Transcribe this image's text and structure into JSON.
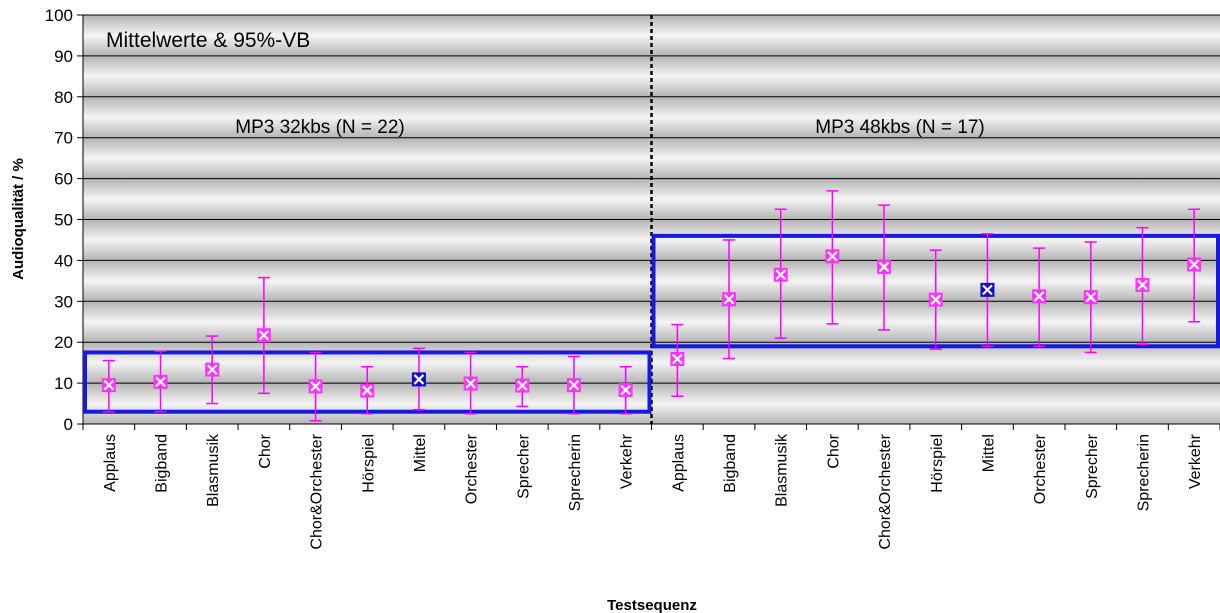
{
  "chart_data": {
    "type": "scatter",
    "title": "Mittelwerte & 95%-VB",
    "xlabel": "Testsequenz",
    "ylabel": "Audioqualität / %",
    "ylim": [
      0,
      100
    ],
    "yticks": [
      0,
      10,
      20,
      30,
      40,
      50,
      60,
      70,
      80,
      90,
      100
    ],
    "grid": true,
    "categories": [
      "Applaus",
      "Bigband",
      "Blasmusik",
      "Chor",
      "Chor&Orchester",
      "Hörspiel",
      "Mittel",
      "Orchester",
      "Sprecher",
      "Sprecherin",
      "Verkehr",
      "Applaus",
      "Bigband",
      "Blasmusik",
      "Chor",
      "Chor&Orchester",
      "Hörspiel",
      "Mittel",
      "Orchester",
      "Sprecher",
      "Sprecherin",
      "Verkehr"
    ],
    "groups": [
      {
        "label": "MP3 32kbs (N = 22)",
        "mean": [
          9.5,
          10.3,
          13.3,
          21.7,
          9.2,
          8.2,
          10.9,
          9.9,
          9.4,
          9.5,
          8.3
        ],
        "ci_low": [
          3,
          3,
          5,
          7.5,
          0.8,
          2.5,
          3.5,
          2.5,
          4.3,
          2.5,
          2.5
        ],
        "ci_high": [
          15.5,
          17.8,
          21.5,
          35.8,
          17.5,
          14,
          18.5,
          17.5,
          14,
          16.5,
          14
        ],
        "box": [
          3,
          17.5
        ]
      },
      {
        "label": "MP3 48kbs (N = 17)",
        "mean": [
          15.9,
          30.5,
          36.5,
          41,
          38.4,
          30.4,
          32.8,
          31.2,
          31,
          34,
          39
        ],
        "ci_low": [
          6.8,
          16,
          21,
          24.5,
          23,
          18.3,
          19,
          19,
          17.5,
          19.5,
          25
        ],
        "ci_high": [
          24.3,
          45,
          52.5,
          57,
          53.5,
          42.5,
          46.5,
          43,
          44.5,
          48,
          52.5
        ],
        "box": [
          19,
          46
        ]
      }
    ],
    "highlight_category": "Mittel",
    "colors": {
      "point": "#ff33ff",
      "errorbar": "#ff00ff",
      "mittel_point": "#1010c0",
      "box": "#1818e0",
      "grid": "#000000",
      "divider": "#000000"
    }
  }
}
